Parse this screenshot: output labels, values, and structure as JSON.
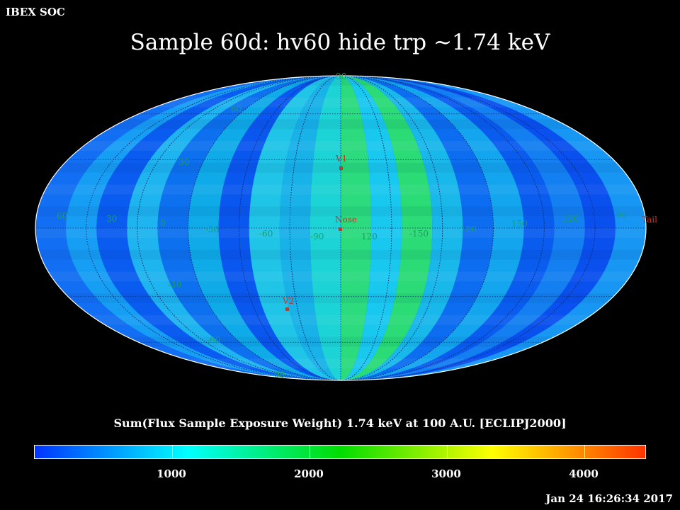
{
  "header": {
    "org": "IBEX SOC",
    "title": "Sample 60d: hv60 hide trp ~1.74 keV"
  },
  "map": {
    "projection": "Mollweide (ecliptic J2000)",
    "longitude_labels": [
      "60",
      "30",
      "0",
      "-30",
      "-60",
      "-90",
      "120",
      "-150",
      "180",
      "150",
      "120",
      "90"
    ],
    "latitude_labels": [
      "90",
      "60",
      "30",
      "-30",
      "-60",
      "-90"
    ],
    "markers": [
      {
        "name": "V1",
        "label": "V1"
      },
      {
        "name": "Nose",
        "label": "Nose"
      },
      {
        "name": "V2",
        "label": "V2"
      },
      {
        "name": "Tail",
        "label": "Tail"
      }
    ]
  },
  "colorbar": {
    "title": "Sum(Flux Sample Exposure Weight)  1.74 keV at 100 A.U. [ECLIPJ2000]",
    "ticks": [
      "1000",
      "2000",
      "3000",
      "4000"
    ],
    "colors": [
      "#0033ff",
      "#00ffff",
      "#00dd00",
      "#ffff00",
      "#ff3300"
    ]
  },
  "footer": {
    "timestamp": "Jan 24 16:26:34 2017"
  }
}
